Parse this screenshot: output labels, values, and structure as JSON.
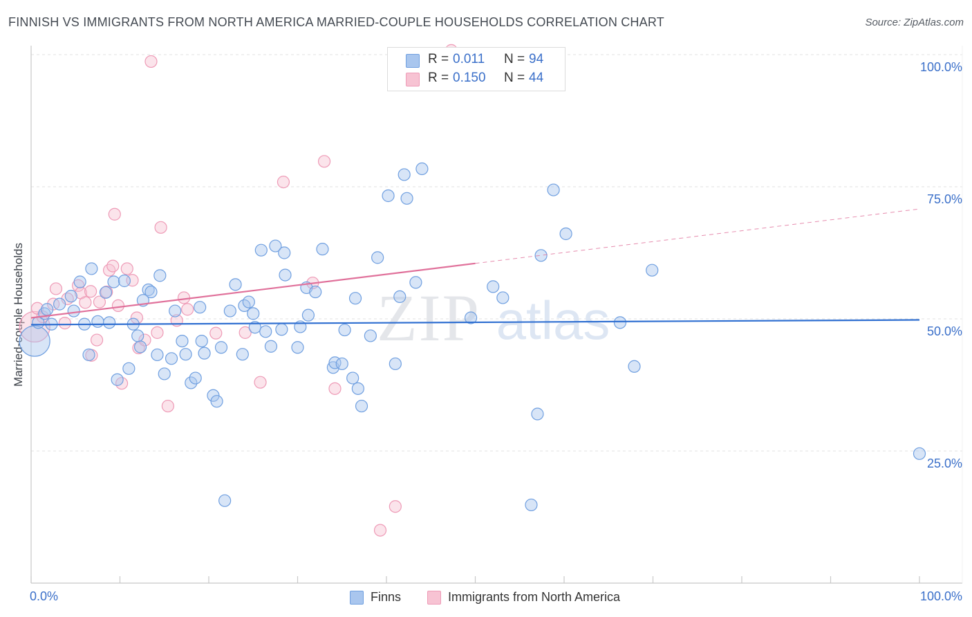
{
  "title": "FINNISH VS IMMIGRANTS FROM NORTH AMERICA MARRIED-COUPLE HOUSEHOLDS CORRELATION CHART",
  "source": "Source: ZipAtlas.com",
  "watermark": {
    "zip": "ZIP",
    "atlas": "atlas"
  },
  "legend": {
    "r_label": "R =",
    "n_label": "N =",
    "rows": [
      {
        "r": "0.011",
        "n": "94"
      },
      {
        "r": "0.150",
        "n": "44"
      }
    ]
  },
  "bottom_legend": [
    {
      "label": "Finns"
    },
    {
      "label": "Immigrants from North America"
    }
  ],
  "colors": {
    "finns_fill": "#a9c6ee",
    "finns_stroke": "#6f9fe0",
    "finns_line": "#2f6fd1",
    "imm_fill": "#f7c3d3",
    "imm_stroke": "#ee9ab6",
    "imm_line": "#e0709a",
    "axis_text": "#3a6fc9",
    "grid": "#e2e2e2"
  },
  "chart_data": {
    "type": "scatter",
    "title": "FINNISH VS IMMIGRANTS FROM NORTH AMERICA MARRIED-COUPLE HOUSEHOLDS CORRELATION CHART",
    "xlabel": "",
    "ylabel": "Married-couple Households",
    "xlim": [
      0,
      100
    ],
    "ylim": [
      0,
      101
    ],
    "x_tick_labels": [
      "0.0%",
      "100.0%"
    ],
    "y_ticks": [
      25,
      50,
      75,
      100
    ],
    "y_tick_labels": [
      "25.0%",
      "50.0%",
      "75.0%",
      "100.0%"
    ],
    "series": [
      {
        "name": "Finns",
        "r": 0.011,
        "n": 94,
        "trend": {
          "x0": 0,
          "y0": 48.9,
          "x1": 100,
          "y1": 49.8,
          "dashed_from": null
        },
        "points": [
          [
            0.4,
            45.8,
            "big"
          ],
          [
            0.8,
            49.3
          ],
          [
            1.5,
            51
          ],
          [
            1.8,
            51.8
          ],
          [
            2.3,
            49
          ],
          [
            3.2,
            52.8
          ],
          [
            4.5,
            54.3
          ],
          [
            4.8,
            51.5
          ],
          [
            5.5,
            57
          ],
          [
            6,
            49
          ],
          [
            6.5,
            43.2
          ],
          [
            6.8,
            59.5
          ],
          [
            7.5,
            49.5
          ],
          [
            8.4,
            55
          ],
          [
            8.8,
            49.3
          ],
          [
            9.3,
            57
          ],
          [
            9.7,
            38.5
          ],
          [
            10.5,
            57.2
          ],
          [
            11,
            40.6
          ],
          [
            11.5,
            49
          ],
          [
            12,
            46.8
          ],
          [
            12.3,
            44.7
          ],
          [
            12.6,
            53.5
          ],
          [
            13.2,
            55.5
          ],
          [
            13.5,
            55.1
          ],
          [
            14.2,
            43.2
          ],
          [
            14.5,
            58.2
          ],
          [
            15,
            39.6
          ],
          [
            15.8,
            42.5
          ],
          [
            16.2,
            51.5
          ],
          [
            17,
            45.8
          ],
          [
            17.4,
            43.3
          ],
          [
            18,
            37.9
          ],
          [
            18.5,
            38.8
          ],
          [
            19,
            52.2
          ],
          [
            19.2,
            45.8
          ],
          [
            19.5,
            43.5
          ],
          [
            20.5,
            35.5
          ],
          [
            20.9,
            34.4
          ],
          [
            21.4,
            44.6
          ],
          [
            21.8,
            15.6
          ],
          [
            22.4,
            51.5
          ],
          [
            23,
            56.5
          ],
          [
            23.8,
            43.3
          ],
          [
            24,
            52.5
          ],
          [
            24.5,
            53.2
          ],
          [
            25,
            51
          ],
          [
            25.2,
            48.4
          ],
          [
            25.9,
            63
          ],
          [
            26.4,
            47.6
          ],
          [
            27,
            44.8
          ],
          [
            27.5,
            63.8
          ],
          [
            28.2,
            48
          ],
          [
            28.6,
            58.3
          ],
          [
            28.5,
            62.5
          ],
          [
            30,
            44.6
          ],
          [
            30.3,
            48.5
          ],
          [
            31.2,
            50.7
          ],
          [
            31,
            55.9
          ],
          [
            32,
            55.1
          ],
          [
            32.8,
            63.2
          ],
          [
            34,
            40.8
          ],
          [
            34.2,
            41.7
          ],
          [
            35,
            41.5
          ],
          [
            35.3,
            47.9
          ],
          [
            36.2,
            38.8
          ],
          [
            36.5,
            53.9
          ],
          [
            36.8,
            36.8
          ],
          [
            37.2,
            33.5
          ],
          [
            38.2,
            46.8
          ],
          [
            39,
            61.6
          ],
          [
            40.2,
            73.3
          ],
          [
            41,
            41.5
          ],
          [
            41.5,
            54.2
          ],
          [
            42,
            77.3
          ],
          [
            42.3,
            72.8
          ],
          [
            43.3,
            56.9
          ],
          [
            44,
            78.4
          ],
          [
            49.5,
            50.2
          ],
          [
            52,
            56.1
          ],
          [
            53.1,
            54
          ],
          [
            56.3,
            14.8
          ],
          [
            57,
            32
          ],
          [
            57.4,
            62
          ],
          [
            58.8,
            74.4
          ],
          [
            60.2,
            66.1
          ],
          [
            66.3,
            49.3
          ],
          [
            67.9,
            41
          ],
          [
            69.9,
            59.2
          ],
          [
            100,
            24.5
          ]
        ]
      },
      {
        "name": "Immigrants from North America",
        "r": 0.15,
        "n": 44,
        "trend": {
          "x0": 0,
          "y0": 50.2,
          "x1": 100,
          "y1": 70.8,
          "solid_until_x": 50
        },
        "points": [
          [
            0.4,
            48.5,
            "big"
          ],
          [
            0.7,
            52
          ],
          [
            1.3,
            50.4
          ],
          [
            2.5,
            52.8
          ],
          [
            2.8,
            55.7
          ],
          [
            3.8,
            49.2
          ],
          [
            4.1,
            53.8
          ],
          [
            5.3,
            56.3
          ],
          [
            5.6,
            54.9
          ],
          [
            6.1,
            53.1
          ],
          [
            6.7,
            55.2
          ],
          [
            6.8,
            43.1
          ],
          [
            7.4,
            46
          ],
          [
            7.7,
            53.2
          ],
          [
            8.5,
            55.1
          ],
          [
            8.8,
            59.2
          ],
          [
            9.2,
            60
          ],
          [
            9.4,
            69.8
          ],
          [
            9.8,
            52.5
          ],
          [
            10.2,
            37.8
          ],
          [
            10.8,
            59.5
          ],
          [
            11.4,
            57.3
          ],
          [
            11.9,
            50.2
          ],
          [
            12.1,
            44.5
          ],
          [
            12.8,
            46
          ],
          [
            13.5,
            98.7
          ],
          [
            14.2,
            47.4
          ],
          [
            14.6,
            67.3
          ],
          [
            15.4,
            33.5
          ],
          [
            16.4,
            49.7
          ],
          [
            17.2,
            54
          ],
          [
            17.6,
            51.8
          ],
          [
            20.8,
            47.3
          ],
          [
            24.1,
            47.4
          ],
          [
            25.8,
            38
          ],
          [
            28.4,
            75.9
          ],
          [
            31.7,
            56.8
          ],
          [
            33,
            79.8
          ],
          [
            34.2,
            36.8
          ],
          [
            39.3,
            10
          ],
          [
            41,
            14.5
          ],
          [
            47.3,
            100.8
          ]
        ]
      }
    ]
  }
}
